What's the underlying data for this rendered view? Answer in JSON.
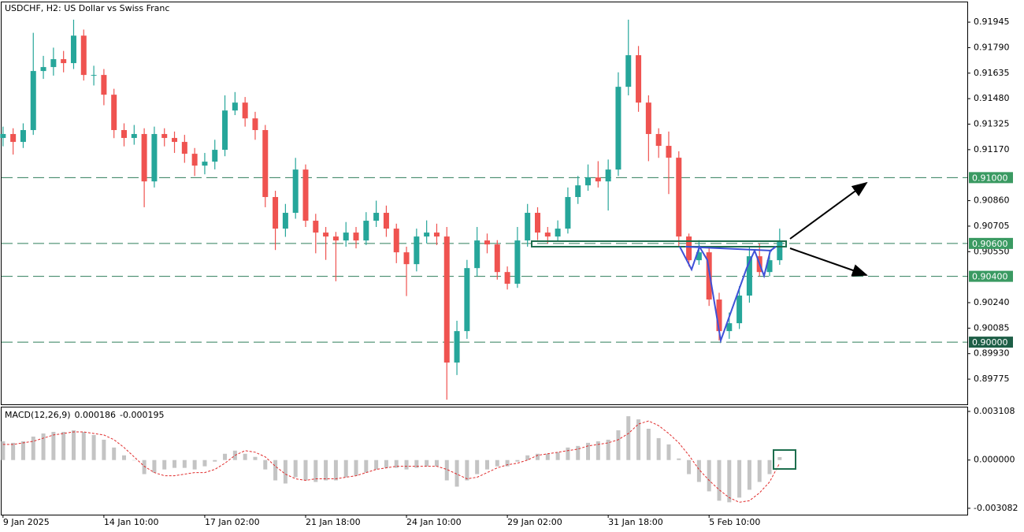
{
  "chart_data": [
    {
      "type": "candlestick",
      "title": "USDCHF, H2:  US Dollar vs Swiss Franc",
      "up_color": "#26a69a",
      "down_color": "#ef5350",
      "open": [
        0.91241,
        0.91265,
        0.91217,
        0.91289,
        0.91648,
        0.91672,
        0.9172,
        0.91696,
        0.91863,
        0.91624,
        0.91624,
        0.91504,
        0.91289,
        0.91241,
        0.91265,
        0.90977,
        0.91265,
        0.91241,
        0.91217,
        0.91145,
        0.91073,
        0.91097,
        0.91169,
        0.91408,
        0.91456,
        0.9136,
        0.91289,
        0.90882,
        0.9069,
        0.90786,
        0.91049,
        0.90738,
        0.90666,
        0.90642,
        0.90618,
        0.90666,
        0.90618,
        0.90738,
        0.90786,
        0.9069,
        0.90546,
        0.90474,
        0.90642,
        0.90666,
        0.90642,
        0.89876,
        0.90067,
        0.9045,
        0.90618,
        0.90594,
        0.90426,
        0.90355,
        0.90618,
        0.90786,
        0.90666,
        0.90642,
        0.9069,
        0.90882,
        0.90953,
        0.91001,
        0.90977,
        0.91049,
        0.91552,
        0.91744,
        0.91456,
        0.91265,
        0.91193,
        0.91121,
        0.90642,
        0.90498,
        0.90546,
        0.90259,
        0.90067,
        0.90115,
        0.90283,
        0.90522,
        0.90426,
        0.90498
      ],
      "high": [
        0.9131,
        0.913,
        0.9133,
        0.9188,
        0.9174,
        0.9179,
        0.9177,
        0.9196,
        0.919,
        0.9168,
        0.9166,
        0.9154,
        0.9133,
        0.9132,
        0.913,
        0.9131,
        0.913,
        0.9128,
        0.9126,
        0.9118,
        0.9115,
        0.9123,
        0.915,
        0.9152,
        0.9149,
        0.914,
        0.9132,
        0.9092,
        0.9084,
        0.9112,
        0.9108,
        0.9078,
        0.907,
        0.9067,
        0.9073,
        0.907,
        0.9079,
        0.9086,
        0.9083,
        0.9072,
        0.9058,
        0.9069,
        0.9074,
        0.9072,
        0.907,
        0.9013,
        0.905,
        0.907,
        0.9066,
        0.9062,
        0.9046,
        0.907,
        0.9084,
        0.9082,
        0.907,
        0.9074,
        0.9094,
        0.9101,
        0.9108,
        0.911,
        0.9111,
        0.9164,
        0.9196,
        0.918,
        0.915,
        0.913,
        0.9128,
        0.9116,
        0.9066,
        0.9062,
        0.9058,
        0.903,
        0.9018,
        0.9034,
        0.9058,
        0.906,
        0.9056,
        0.9069
      ],
      "low": [
        0.9119,
        0.9114,
        0.9118,
        0.9126,
        0.916,
        0.9162,
        0.9164,
        0.9166,
        0.9159,
        0.9156,
        0.9144,
        0.9124,
        0.9119,
        0.912,
        0.9082,
        0.9094,
        0.9119,
        0.9115,
        0.9109,
        0.9101,
        0.9102,
        0.9105,
        0.9113,
        0.9138,
        0.9131,
        0.9123,
        0.9082,
        0.9056,
        0.9064,
        0.9075,
        0.907,
        0.9054,
        0.905,
        0.9037,
        0.9058,
        0.9057,
        0.9059,
        0.907,
        0.9064,
        0.9048,
        0.9028,
        0.9043,
        0.906,
        0.9059,
        0.8965,
        0.898,
        0.9002,
        0.904,
        0.9054,
        0.9038,
        0.9032,
        0.9033,
        0.9058,
        0.9062,
        0.906,
        0.9061,
        0.9066,
        0.9084,
        0.9092,
        0.9094,
        0.908,
        0.9101,
        0.915,
        0.914,
        0.911,
        0.9112,
        0.909,
        0.9058,
        0.9046,
        0.9047,
        0.9022,
        0.9001,
        0.9002,
        0.9008,
        0.9024,
        0.904,
        0.904,
        0.9047
      ],
      "close": [
        0.91265,
        0.91217,
        0.91289,
        0.91648,
        0.91672,
        0.9172,
        0.91696,
        0.91863,
        0.91624,
        0.91624,
        0.91504,
        0.91289,
        0.91241,
        0.91265,
        0.90977,
        0.91265,
        0.91241,
        0.91217,
        0.91145,
        0.91073,
        0.91097,
        0.91169,
        0.91408,
        0.91456,
        0.9136,
        0.91289,
        0.90882,
        0.9069,
        0.90786,
        0.91049,
        0.90738,
        0.90666,
        0.90642,
        0.90618,
        0.90666,
        0.90618,
        0.90738,
        0.90786,
        0.9069,
        0.90546,
        0.90474,
        0.90642,
        0.90666,
        0.90642,
        0.89876,
        0.90067,
        0.9045,
        0.90618,
        0.90594,
        0.90426,
        0.90355,
        0.90618,
        0.90786,
        0.90666,
        0.90642,
        0.9069,
        0.90882,
        0.90953,
        0.91001,
        0.90977,
        0.91049,
        0.91552,
        0.91744,
        0.91456,
        0.91265,
        0.91193,
        0.91121,
        0.90642,
        0.90498,
        0.90546,
        0.90259,
        0.90067,
        0.90115,
        0.90283,
        0.90522,
        0.90426,
        0.90498,
        0.90618
      ],
      "xlim": [
        -0.3,
        95.6
      ],
      "xticks": [
        {
          "value": 0,
          "label": "9 Jan 2025"
        },
        {
          "value": 10,
          "label": "14 Jan 10:00"
        },
        {
          "value": 20,
          "label": "17 Jan 02:00"
        },
        {
          "value": 30,
          "label": "21 Jan 18:00"
        },
        {
          "value": 40,
          "label": "24 Jan 10:00"
        },
        {
          "value": 50,
          "label": "29 Jan 02:00"
        },
        {
          "value": 60,
          "label": "31 Jan 18:00"
        },
        {
          "value": 70,
          "label": "5 Feb 10:00"
        }
      ],
      "ylim": [
        0.89622,
        0.9207
      ],
      "yticks": [
        0.91945,
        {
          "value": 0.9179,
          "label": "0.91790"
        },
        0.91635,
        {
          "value": 0.9148,
          "label": "0.91480"
        },
        0.91325,
        {
          "value": 0.9117,
          "label": "0.91170"
        },
        {
          "value": 0.9086,
          "label": "0.90860"
        },
        0.90705,
        {
          "value": 0.9055,
          "label": "0.90550"
        },
        {
          "value": 0.9024,
          "label": "0.90240"
        },
        0.90085,
        {
          "value": 0.8993,
          "label": "0.89930"
        },
        0.89775
      ],
      "levels": [
        {
          "value": 0.91,
          "label": "0.91000",
          "color": "#3a9a62"
        },
        {
          "value": 0.906,
          "label": "0.90600",
          "color": "#3a9a62"
        },
        {
          "value": 0.904,
          "label": "0.90400",
          "color": "#3a9a62"
        },
        {
          "value": 0.9,
          "label": "0.90000",
          "color": "#1d5e46"
        }
      ]
    },
    {
      "type": "bar",
      "title": "MACD(12,26,9)",
      "series": [
        {
          "color": "#c4c4c4",
          "values": [
            0.0012,
            0.0011,
            0.0012,
            0.0015,
            0.0017,
            0.0018,
            0.0018,
            0.0019,
            0.0018,
            0.0016,
            0.0013,
            0.0008,
            0.0003,
            0.0,
            -0.0009,
            -0.0008,
            -0.0006,
            -0.0005,
            -0.0005,
            -0.0006,
            -0.0004,
            -0.0001,
            0.0004,
            0.0006,
            0.0004,
            0.0002,
            -0.0006,
            -0.0013,
            -0.0015,
            -0.0011,
            -0.0013,
            -0.0014,
            -0.0013,
            -0.0013,
            -0.0011,
            -0.001,
            -0.0008,
            -0.0006,
            -0.0005,
            -0.0005,
            -0.0006,
            -0.0005,
            -0.0004,
            -0.0004,
            -0.0013,
            -0.0017,
            -0.0013,
            -0.0009,
            -0.0006,
            -0.0004,
            -0.0004,
            -0.0001,
            0.0003,
            0.0004,
            0.0004,
            0.0005,
            0.0008,
            0.0009,
            0.0011,
            0.0012,
            0.0013,
            0.0019,
            0.0028,
            0.0026,
            0.002,
            0.0014,
            0.001,
            0.0001,
            -0.0009,
            -0.0014,
            -0.002,
            -0.0026,
            -0.0027,
            -0.0024,
            -0.0019,
            -0.0014,
            -0.0009,
            0.000186
          ]
        },
        {
          "color": "#e02b2b",
          "dashed": true,
          "values": [
            0.001,
            0.001,
            0.0011,
            0.0012,
            0.0014,
            0.0016,
            0.0017,
            0.0018,
            0.0018,
            0.0017,
            0.0016,
            0.0013,
            0.0008,
            0.0002,
            -0.0004,
            -0.0008,
            -0.001,
            -0.001,
            -0.0009,
            -0.0008,
            -0.0008,
            -0.0006,
            -0.0002,
            0.0003,
            0.0006,
            0.0005,
            0.0002,
            -0.0004,
            -0.0009,
            -0.0012,
            -0.0013,
            -0.0012,
            -0.0012,
            -0.0012,
            -0.0011,
            -0.001,
            -0.0008,
            -0.0006,
            -0.0005,
            -0.0004,
            -0.0004,
            -0.0004,
            -0.0004,
            -0.0004,
            -0.0006,
            -0.0009,
            -0.0012,
            -0.0011,
            -0.0008,
            -0.0005,
            -0.0003,
            -0.0002,
            0.0,
            0.0003,
            0.0004,
            0.0005,
            0.0006,
            0.0007,
            0.0009,
            0.001,
            0.0011,
            0.0013,
            0.0017,
            0.0023,
            0.0025,
            0.0022,
            0.0017,
            0.0011,
            0.0003,
            -0.0006,
            -0.0013,
            -0.0019,
            -0.0024,
            -0.0027,
            -0.0026,
            -0.0021,
            -0.0014,
            -0.000195
          ]
        }
      ],
      "ylim": [
        -0.00349,
        0.00341
      ],
      "yticks": [
        0.003108,
        {
          "value": 0,
          "label": "0.000000"
        },
        -0.003082
      ]
    }
  ]
}
